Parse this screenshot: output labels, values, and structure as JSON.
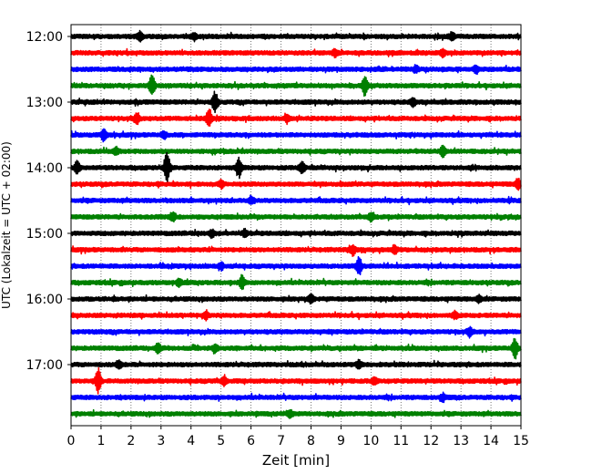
{
  "chart_data": {
    "type": "line",
    "subtype": "helicorder",
    "xlabel": "Zeit  [min]",
    "ylabel": "UTC (Lokalzeit = UTC + 02:00)",
    "xlim": [
      0,
      15
    ],
    "x_ticks": [
      "0",
      "1",
      "2",
      "3",
      "4",
      "5",
      "6",
      "7",
      "8",
      "9",
      "10",
      "11",
      "12",
      "13",
      "14",
      "15"
    ],
    "y_tick_labels": [
      "12:00",
      "13:00",
      "14:00",
      "15:00",
      "16:00",
      "17:00"
    ],
    "grid": "vertical-dotted",
    "trace_interval_min": 15,
    "trace_colors": [
      "#000000",
      "#ff0000",
      "#0000ff",
      "#008000"
    ],
    "traces": [
      {
        "start": "12:00",
        "events": [
          [
            2.3,
            0.4
          ],
          [
            4.1,
            0.3
          ],
          [
            12.7,
            0.35
          ]
        ]
      },
      {
        "start": "12:15",
        "events": [
          [
            8.8,
            0.3
          ],
          [
            12.4,
            0.3
          ]
        ]
      },
      {
        "start": "12:30",
        "events": [
          [
            11.5,
            0.3
          ],
          [
            13.5,
            0.3
          ]
        ]
      },
      {
        "start": "12:45",
        "events": [
          [
            2.7,
            1.0
          ],
          [
            9.8,
            0.9
          ]
        ]
      },
      {
        "start": "13:00",
        "events": [
          [
            4.8,
            1.0
          ],
          [
            11.4,
            0.35
          ]
        ]
      },
      {
        "start": "13:15",
        "events": [
          [
            2.2,
            0.45
          ],
          [
            4.6,
            0.85
          ],
          [
            7.2,
            0.3
          ]
        ]
      },
      {
        "start": "13:30",
        "events": [
          [
            1.1,
            0.55
          ],
          [
            3.1,
            0.3
          ]
        ]
      },
      {
        "start": "13:45",
        "events": [
          [
            12.4,
            0.45
          ],
          [
            1.5,
            0.3
          ]
        ]
      },
      {
        "start": "14:00",
        "events": [
          [
            0.2,
            0.55
          ],
          [
            3.2,
            1.4
          ],
          [
            5.6,
            0.85
          ],
          [
            7.7,
            0.5
          ]
        ]
      },
      {
        "start": "14:15",
        "events": [
          [
            14.9,
            0.5
          ],
          [
            5.0,
            0.3
          ]
        ]
      },
      {
        "start": "14:30",
        "events": [
          [
            6.0,
            0.3
          ]
        ]
      },
      {
        "start": "14:45",
        "events": [
          [
            3.4,
            0.35
          ],
          [
            10.0,
            0.35
          ]
        ]
      },
      {
        "start": "15:00",
        "events": [
          [
            4.7,
            0.3
          ],
          [
            5.8,
            0.3
          ]
        ]
      },
      {
        "start": "15:15",
        "events": [
          [
            9.4,
            0.4
          ],
          [
            10.8,
            0.3
          ]
        ]
      },
      {
        "start": "15:30",
        "events": [
          [
            9.6,
            0.85
          ],
          [
            5.0,
            0.3
          ]
        ]
      },
      {
        "start": "15:45",
        "events": [
          [
            5.7,
            0.6
          ],
          [
            3.6,
            0.3
          ]
        ]
      },
      {
        "start": "16:00",
        "events": [
          [
            8.0,
            0.35
          ],
          [
            13.6,
            0.3
          ]
        ]
      },
      {
        "start": "16:15",
        "events": [
          [
            4.5,
            0.3
          ],
          [
            12.8,
            0.3
          ]
        ]
      },
      {
        "start": "16:30",
        "events": [
          [
            13.3,
            0.35
          ]
        ]
      },
      {
        "start": "16:45",
        "events": [
          [
            2.9,
            0.4
          ],
          [
            4.8,
            0.3
          ],
          [
            14.8,
            1.0
          ]
        ]
      },
      {
        "start": "17:00",
        "events": [
          [
            1.6,
            0.3
          ],
          [
            9.6,
            0.35
          ]
        ]
      },
      {
        "start": "17:15",
        "events": [
          [
            0.9,
            1.2
          ],
          [
            5.1,
            0.4
          ],
          [
            10.1,
            0.3
          ]
        ]
      },
      {
        "start": "17:30",
        "events": [
          [
            12.4,
            0.3
          ]
        ]
      },
      {
        "start": "17:45",
        "events": [
          [
            7.3,
            0.3
          ]
        ]
      }
    ]
  }
}
